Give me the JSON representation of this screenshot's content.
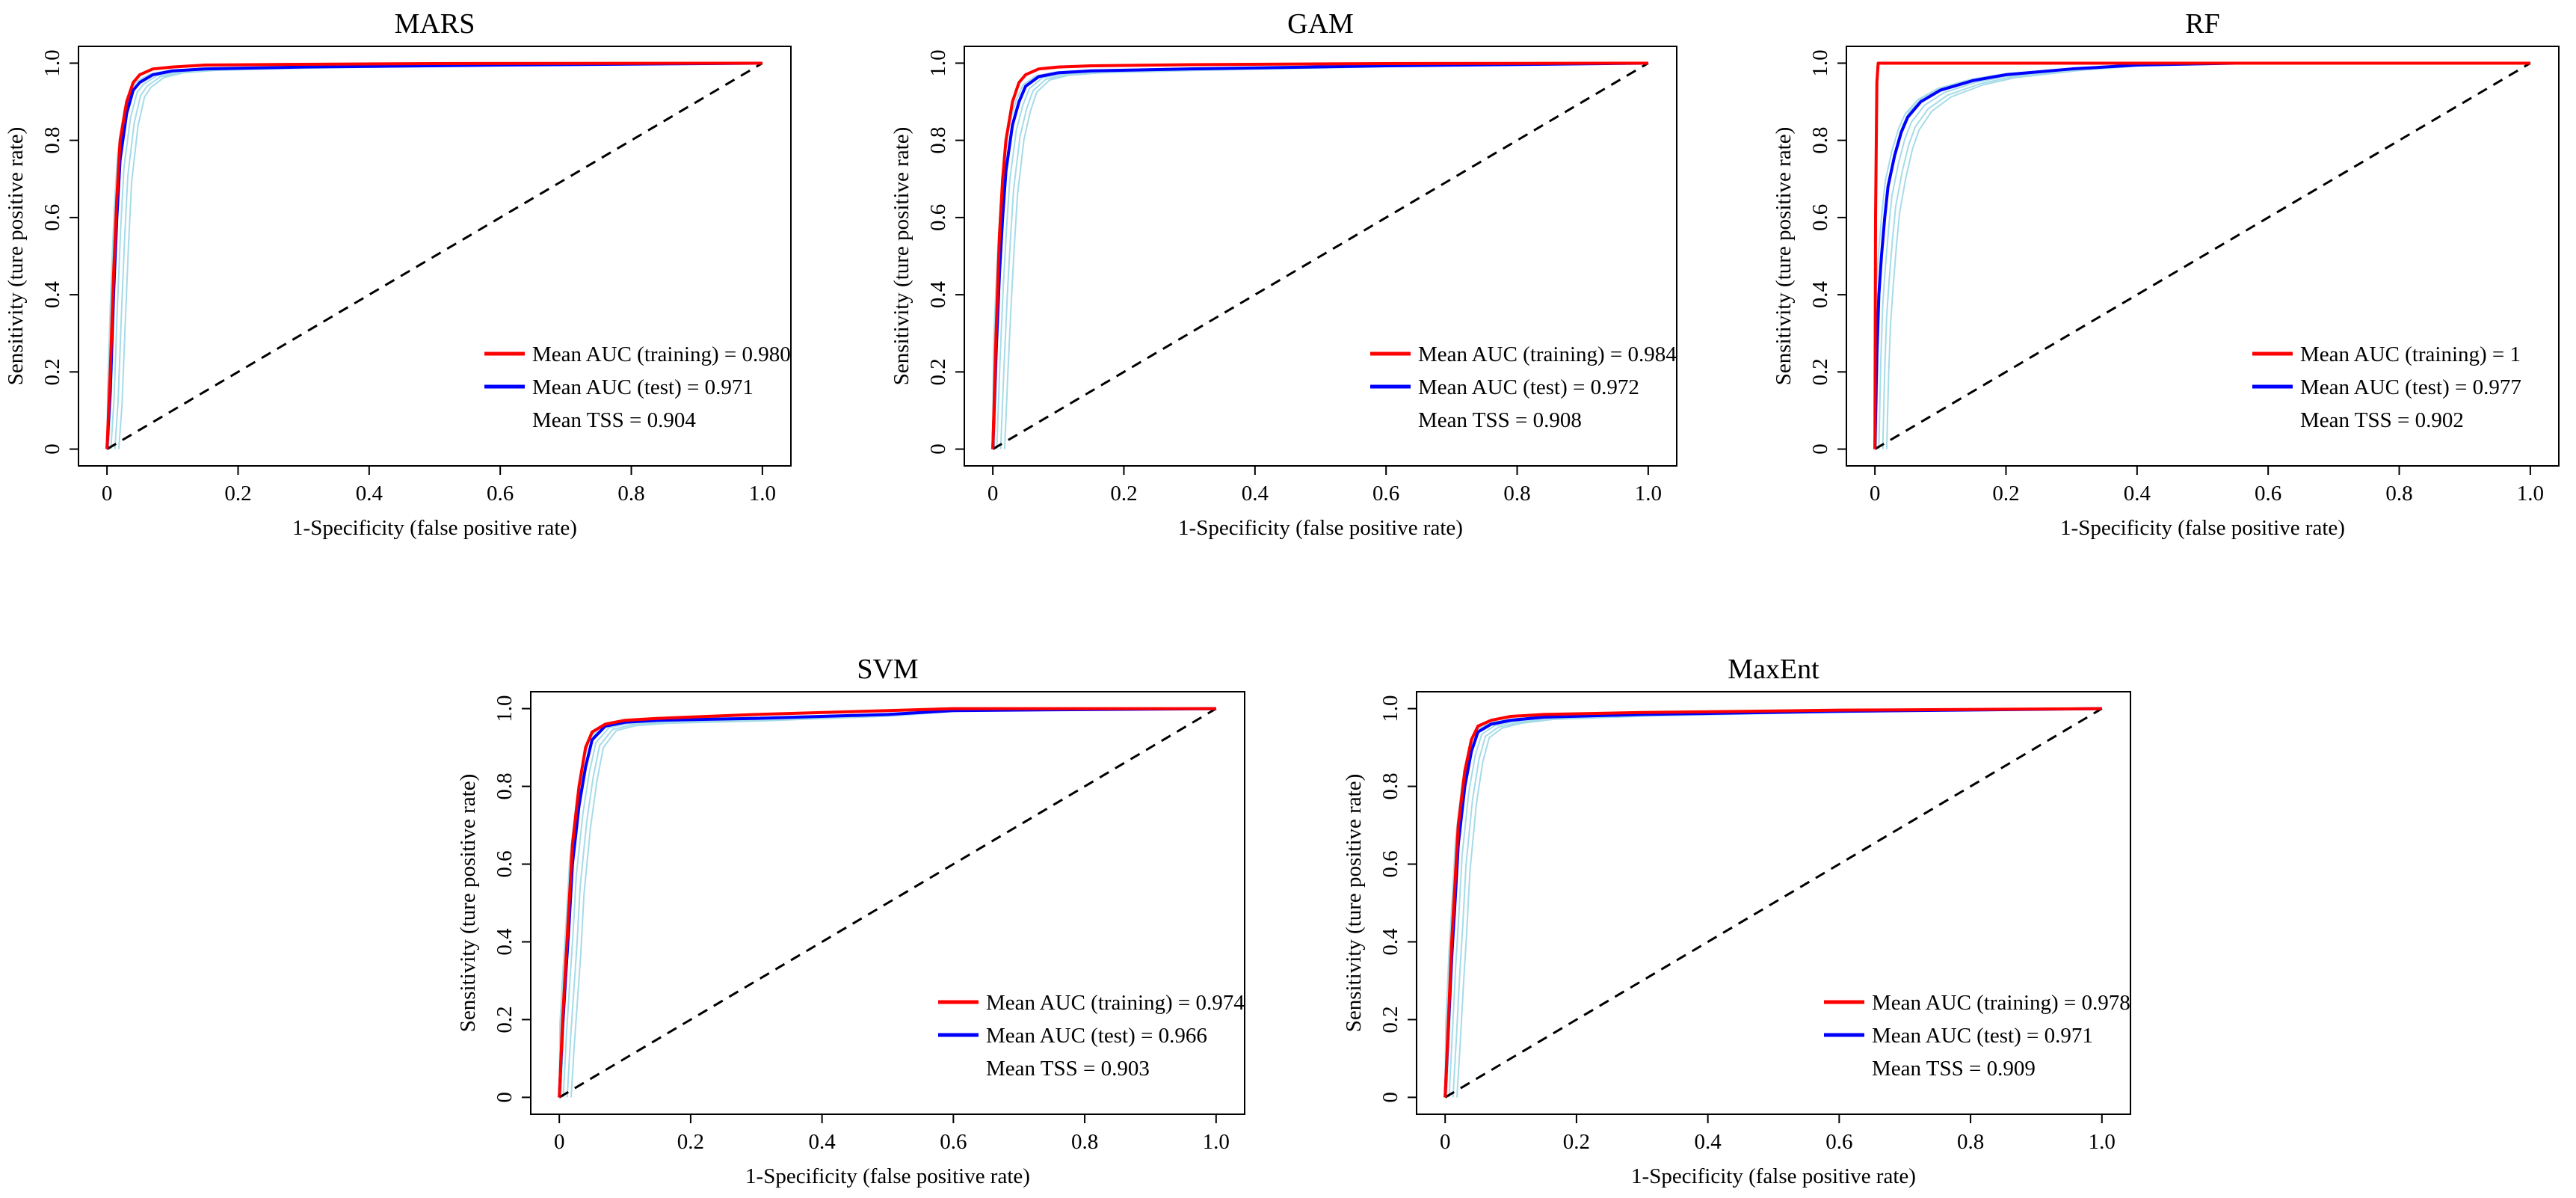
{
  "chart_data": [
    {
      "type": "line",
      "title": "MARS",
      "xlabel": "1-Specificity (false positive rate)",
      "ylabel": "Sensitivity (ture positive rate)",
      "xlim": [
        0,
        1
      ],
      "ylim": [
        0,
        1
      ],
      "xticks": [
        "0",
        "0.2",
        "0.4",
        "0.6",
        "0.8",
        "1.0"
      ],
      "yticks": [
        "0",
        "0.2",
        "0.4",
        "0.6",
        "0.8",
        "1.0"
      ],
      "legend_position": "bottom-right",
      "series": [
        {
          "name": "training",
          "color": "#ff0000",
          "x": [
            0,
            0.005,
            0.01,
            0.015,
            0.02,
            0.03,
            0.04,
            0.05,
            0.07,
            0.1,
            0.15,
            0.3,
            0.5,
            1.0
          ],
          "y": [
            0,
            0.2,
            0.45,
            0.65,
            0.8,
            0.9,
            0.95,
            0.97,
            0.985,
            0.99,
            0.995,
            0.997,
            0.999,
            1.0
          ]
        },
        {
          "name": "test",
          "color": "#0000ff",
          "x": [
            0,
            0.005,
            0.01,
            0.015,
            0.02,
            0.03,
            0.04,
            0.05,
            0.07,
            0.1,
            0.15,
            0.3,
            0.6,
            1.0
          ],
          "y": [
            0,
            0.15,
            0.4,
            0.6,
            0.75,
            0.87,
            0.93,
            0.95,
            0.97,
            0.98,
            0.985,
            0.99,
            0.995,
            1.0
          ]
        }
      ],
      "legend": {
        "training_label": "Mean AUC (training) = 0.980",
        "test_label": "Mean AUC (test) = 0.971",
        "tss_label": "Mean TSS =  0.904"
      }
    },
    {
      "type": "line",
      "title": "GAM",
      "xlabel": "1-Specificity (false positive rate)",
      "ylabel": "Sensitivity (ture positive rate)",
      "xlim": [
        0,
        1
      ],
      "ylim": [
        0,
        1
      ],
      "xticks": [
        "0",
        "0.2",
        "0.4",
        "0.6",
        "0.8",
        "1.0"
      ],
      "yticks": [
        "0",
        "0.2",
        "0.4",
        "0.6",
        "0.8",
        "1.0"
      ],
      "legend_position": "bottom-right",
      "series": [
        {
          "name": "training",
          "color": "#ff0000",
          "x": [
            0,
            0.005,
            0.01,
            0.015,
            0.02,
            0.03,
            0.04,
            0.05,
            0.07,
            0.1,
            0.15,
            0.3,
            0.6,
            1.0
          ],
          "y": [
            0,
            0.3,
            0.55,
            0.7,
            0.8,
            0.9,
            0.95,
            0.97,
            0.985,
            0.99,
            0.993,
            0.996,
            0.999,
            1.0
          ]
        },
        {
          "name": "test",
          "color": "#0000ff",
          "x": [
            0,
            0.005,
            0.01,
            0.015,
            0.02,
            0.03,
            0.04,
            0.05,
            0.07,
            0.1,
            0.15,
            0.3,
            0.6,
            1.0
          ],
          "y": [
            0,
            0.25,
            0.45,
            0.6,
            0.72,
            0.84,
            0.9,
            0.94,
            0.965,
            0.975,
            0.98,
            0.985,
            0.993,
            1.0
          ]
        }
      ],
      "legend": {
        "training_label": "Mean AUC (training) = 0.984",
        "test_label": "Mean AUC (test) = 0.972",
        "tss_label": "Mean TSS = 0.908"
      }
    },
    {
      "type": "line",
      "title": "RF",
      "xlabel": "1-Specificity (false positive rate)",
      "ylabel": "Sensitivity (ture positive rate)",
      "xlim": [
        0,
        1
      ],
      "ylim": [
        0,
        1
      ],
      "xticks": [
        "0",
        "0.2",
        "0.4",
        "0.6",
        "0.8",
        "1.0"
      ],
      "yticks": [
        "0",
        "0.2",
        "0.4",
        "0.6",
        "0.8",
        "1.0"
      ],
      "legend_position": "bottom-right",
      "series": [
        {
          "name": "training",
          "color": "#ff0000",
          "x": [
            0,
            0.001,
            0.003,
            0.005,
            1.0
          ],
          "y": [
            0,
            0.6,
            0.95,
            1.0,
            1.0
          ]
        },
        {
          "name": "test",
          "color": "#0000ff",
          "x": [
            0,
            0.003,
            0.006,
            0.01,
            0.015,
            0.02,
            0.03,
            0.04,
            0.05,
            0.07,
            0.1,
            0.15,
            0.2,
            0.3,
            0.4,
            0.55,
            1.0
          ],
          "y": [
            0,
            0.25,
            0.4,
            0.5,
            0.6,
            0.68,
            0.76,
            0.82,
            0.86,
            0.9,
            0.93,
            0.955,
            0.97,
            0.985,
            0.995,
            1.0,
            1.0
          ]
        }
      ],
      "legend": {
        "training_label": "Mean AUC  (training) =  1",
        "test_label": "Mean AUC (test) = 0.977",
        "tss_label": "Mean TSS =  0.902"
      }
    },
    {
      "type": "line",
      "title": "SVM",
      "xlabel": "1-Specificity (false positive rate)",
      "ylabel": "Sensitivity (ture positive rate)",
      "xlim": [
        0,
        1
      ],
      "ylim": [
        0,
        1
      ],
      "xticks": [
        "0",
        "0.2",
        "0.4",
        "0.6",
        "0.8",
        "1.0"
      ],
      "yticks": [
        "0",
        "0.2",
        "0.4",
        "0.6",
        "0.8",
        "1.0"
      ],
      "legend_position": "bottom-right",
      "series": [
        {
          "name": "training",
          "color": "#ff0000",
          "x": [
            0,
            0.005,
            0.01,
            0.015,
            0.02,
            0.03,
            0.04,
            0.05,
            0.07,
            0.1,
            0.15,
            0.3,
            0.5,
            0.6,
            1.0
          ],
          "y": [
            0,
            0.2,
            0.35,
            0.5,
            0.65,
            0.8,
            0.9,
            0.94,
            0.96,
            0.97,
            0.975,
            0.985,
            0.995,
            1.0,
            1.0
          ]
        },
        {
          "name": "test",
          "color": "#0000ff",
          "x": [
            0,
            0.005,
            0.01,
            0.015,
            0.02,
            0.03,
            0.04,
            0.05,
            0.07,
            0.1,
            0.15,
            0.3,
            0.5,
            0.6,
            1.0
          ],
          "y": [
            0,
            0.18,
            0.32,
            0.45,
            0.6,
            0.75,
            0.85,
            0.92,
            0.955,
            0.965,
            0.97,
            0.975,
            0.985,
            0.995,
            1.0
          ]
        }
      ],
      "legend": {
        "training_label": "Mean AUC  (training) = 0.974",
        "test_label": "Mean AUC  (test) = 0.966",
        "tss_label": "Mean TSS = 0.903"
      }
    },
    {
      "type": "line",
      "title": "MaxEnt",
      "xlabel": "1-Specificity (false positive rate)",
      "ylabel": "Sensitivity (ture positive rate)",
      "xlim": [
        0,
        1
      ],
      "ylim": [
        0,
        1
      ],
      "xticks": [
        "0",
        "0.2",
        "0.4",
        "0.6",
        "0.8",
        "1.0"
      ],
      "yticks": [
        "0",
        "0.2",
        "0.4",
        "0.6",
        "0.8",
        "1.0"
      ],
      "legend_position": "bottom-right",
      "series": [
        {
          "name": "training",
          "color": "#ff0000",
          "x": [
            0,
            0.005,
            0.01,
            0.015,
            0.02,
            0.03,
            0.04,
            0.05,
            0.07,
            0.1,
            0.15,
            0.3,
            0.6,
            1.0
          ],
          "y": [
            0,
            0.2,
            0.4,
            0.55,
            0.7,
            0.84,
            0.92,
            0.955,
            0.97,
            0.98,
            0.985,
            0.99,
            0.996,
            1.0
          ]
        },
        {
          "name": "test",
          "color": "#0000ff",
          "x": [
            0,
            0.005,
            0.01,
            0.015,
            0.02,
            0.03,
            0.04,
            0.05,
            0.07,
            0.1,
            0.15,
            0.3,
            0.6,
            1.0
          ],
          "y": [
            0,
            0.18,
            0.36,
            0.5,
            0.65,
            0.8,
            0.89,
            0.94,
            0.96,
            0.97,
            0.978,
            0.985,
            0.993,
            1.0
          ]
        }
      ],
      "legend": {
        "training_label": "Mean AUC  (training) = 0.978",
        "test_label": "Mean AUC  (test) = 0.971",
        "tss_label": "Mean TSS = 0.909"
      }
    }
  ],
  "colors": {
    "training": "#ff0000",
    "test": "#0000ff",
    "replicate": "#a6dbe8",
    "random": "#000000"
  }
}
